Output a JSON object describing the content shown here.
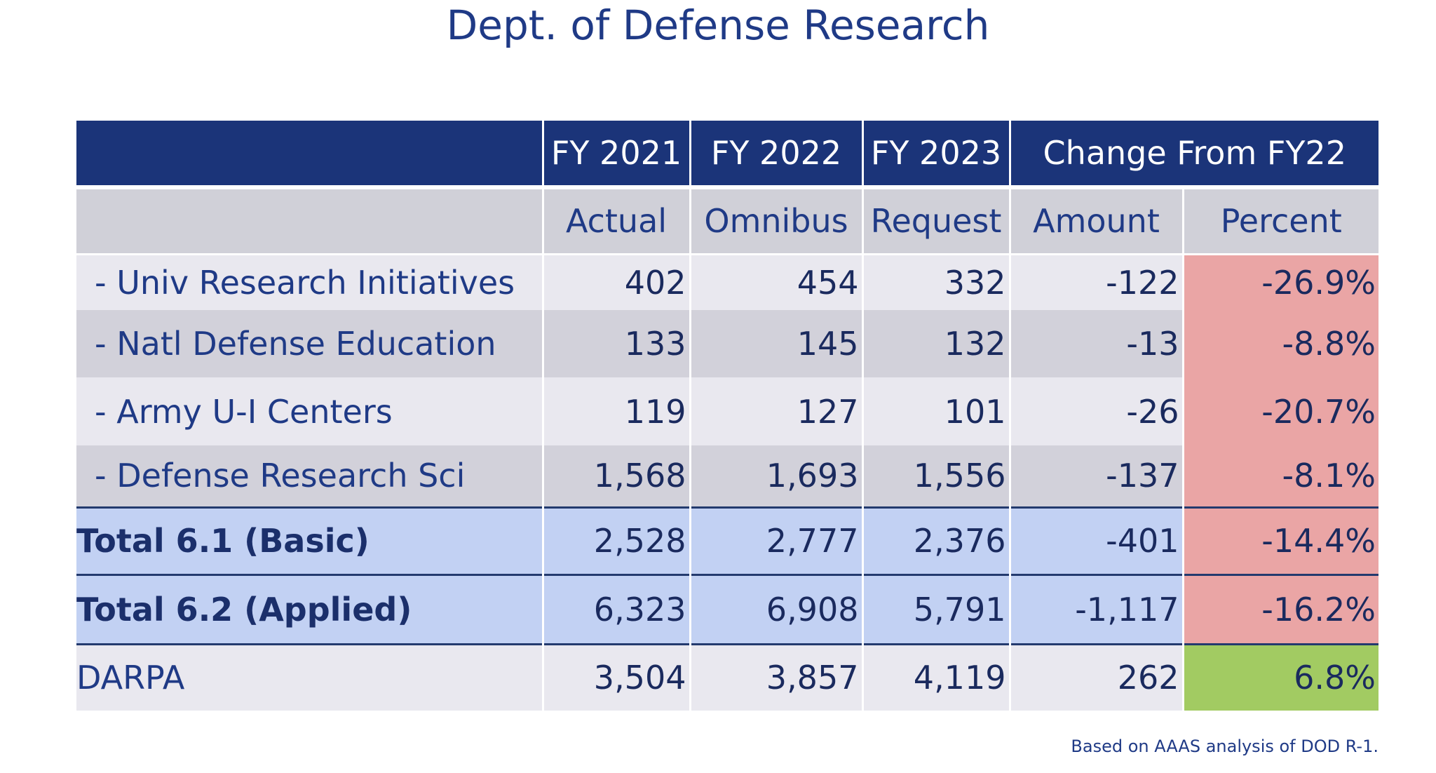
{
  "title": "Dept. of Defense Research",
  "header_top": {
    "label": "",
    "fy2021": "FY 2021",
    "fy2022": "FY 2022",
    "fy2023": "FY 2023",
    "change": "Change From FY22"
  },
  "header_sub": {
    "label": "",
    "actual": "Actual",
    "omnibus": "Omnibus",
    "request": "Request",
    "amount": "Amount",
    "percent": "Percent"
  },
  "rows": [
    {
      "label": "- Univ Research Initiatives",
      "actual": "402",
      "omnibus": "454",
      "request": "332",
      "amount": "-122",
      "percent": "-26.9%"
    },
    {
      "label": "- Natl Defense Education",
      "actual": "133",
      "omnibus": "145",
      "request": "132",
      "amount": "-13",
      "percent": "-8.8%"
    },
    {
      "label": "- Army U-I Centers",
      "actual": "119",
      "omnibus": "127",
      "request": "101",
      "amount": "-26",
      "percent": "-20.7%"
    },
    {
      "label": "- Defense Research Sci",
      "actual": "1,568",
      "omnibus": "1,693",
      "request": "1,556",
      "amount": "-137",
      "percent": "-8.1%"
    },
    {
      "label": "Total 6.1 (Basic)",
      "actual": "2,528",
      "omnibus": "2,777",
      "request": "2,376",
      "amount": "-401",
      "percent": "-14.4%"
    },
    {
      "label": "Total 6.2 (Applied)",
      "actual": "6,323",
      "omnibus": "6,908",
      "request": "5,791",
      "amount": "-1,117",
      "percent": "-16.2%"
    },
    {
      "label": "DARPA",
      "actual": "3,504",
      "omnibus": "3,857",
      "request": "4,119",
      "amount": "262",
      "percent": "6.8%"
    }
  ],
  "colors": {
    "header_bg": "#1b3479",
    "negative_percent": "#eaa5a5",
    "positive_percent": "#a2cb62",
    "total_row_bg": "#c2d1f3"
  },
  "footnote": "Based on AAAS analysis of DOD R-1."
}
